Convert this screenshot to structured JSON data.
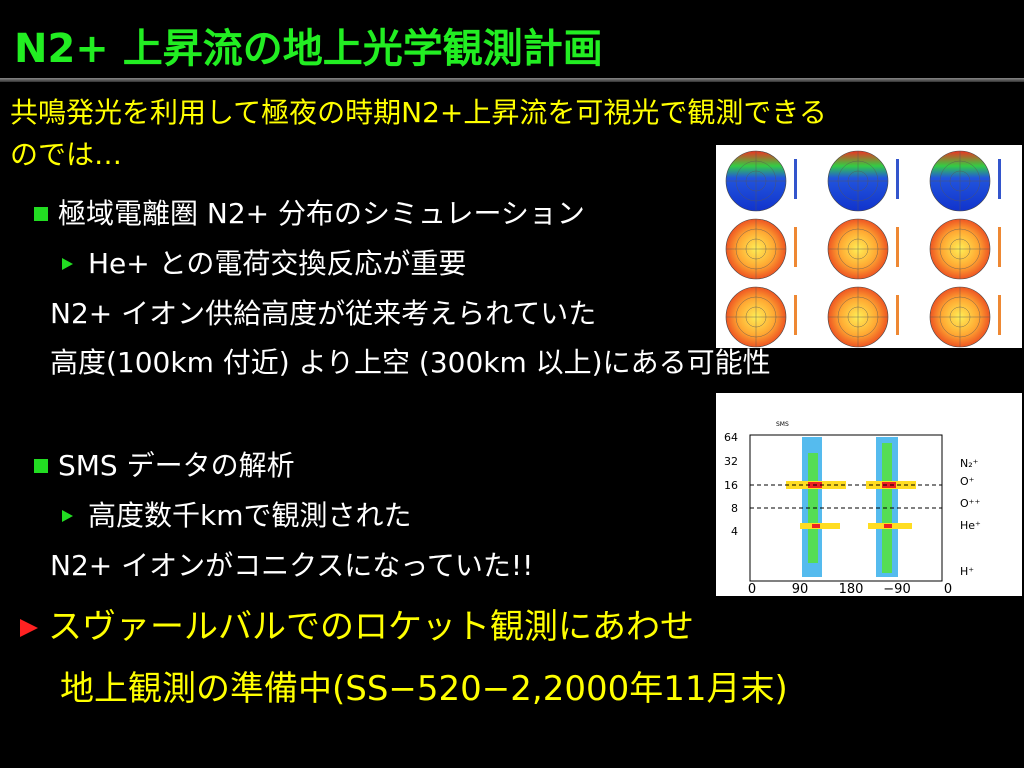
{
  "title": "N2+ 上昇流の地上光学観測計画",
  "intro": [
    "共鳴発光を利用して極夜の時期N2+上昇流を可視光で観測できる",
    "のでは…"
  ],
  "section1": {
    "heading": "極域電離圏 N2+ 分布のシミュレーション",
    "sub": "He+ との電荷交換反応が重要",
    "lines": [
      "N2+ イオン供給高度が従来考えられていた",
      "高度(100km 付近) より上空 (300km 以上)にある可能性"
    ]
  },
  "section2": {
    "heading": "SMS データの解析",
    "sub": "高度数千kmで観測された",
    "lines": [
      "N2+ イオンがコニクスになっていた!!"
    ]
  },
  "conclusion": [
    "スヴァールバルでのロケット観測にあわせ",
    "地上観測の準備中(SS−520−2,2000年11月末)"
  ],
  "spectrogram": {
    "y_labels": [
      "64",
      "32",
      "16",
      "8",
      "4"
    ],
    "x_labels": [
      "0",
      "90",
      "180",
      "−90",
      "0"
    ],
    "ion_labels": [
      "N₂⁺",
      "O⁺",
      "O⁺⁺",
      "He⁺",
      "H⁺"
    ]
  }
}
